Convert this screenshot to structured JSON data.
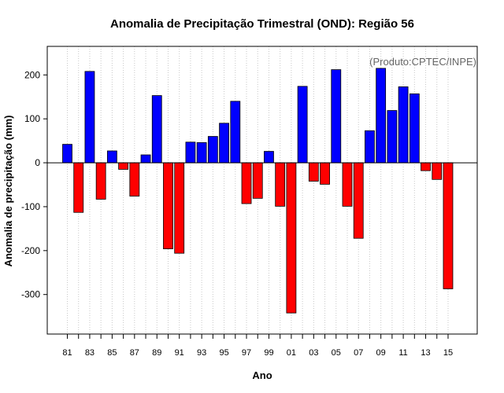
{
  "chart_data": {
    "type": "bar",
    "title": "Anomalia de Precipitação Trimestral (OND): Região 56",
    "xlabel": "Ano",
    "ylabel": "Anomalia de precipitação (mm)",
    "source_note": "(Produto:CPTEC/INPE)",
    "ylim": [
      -390,
      265
    ],
    "yticks": [
      200,
      100,
      0,
      -100,
      -200,
      -300
    ],
    "ytick_labels": [
      "200",
      "100",
      "0",
      "-100",
      "-200",
      "-300"
    ],
    "xtick_labels": [
      "81",
      "83",
      "85",
      "87",
      "89",
      "91",
      "93",
      "95",
      "97",
      "99",
      "01",
      "03",
      "05",
      "07",
      "09",
      "11",
      "13",
      "15"
    ],
    "grid": true,
    "categories": [
      1981,
      1982,
      1983,
      1984,
      1985,
      1986,
      1987,
      1988,
      1989,
      1990,
      1991,
      1992,
      1993,
      1994,
      1995,
      1996,
      1997,
      1998,
      1999,
      2000,
      2001,
      2002,
      2003,
      2004,
      2005,
      2006,
      2007,
      2008,
      2009,
      2010,
      2011,
      2012,
      2013,
      2014,
      2015
    ],
    "values": [
      42,
      -113,
      208,
      -83,
      27,
      -15,
      -76,
      18,
      153,
      -196,
      -206,
      47,
      46,
      60,
      90,
      140,
      -93,
      -81,
      26,
      -99,
      -342,
      174,
      -42,
      -49,
      212,
      -99,
      -172,
      73,
      215,
      119,
      173,
      157,
      -18,
      -38,
      -287
    ],
    "colors": {
      "positive": "#0000ff",
      "negative": "#ff0000"
    }
  }
}
